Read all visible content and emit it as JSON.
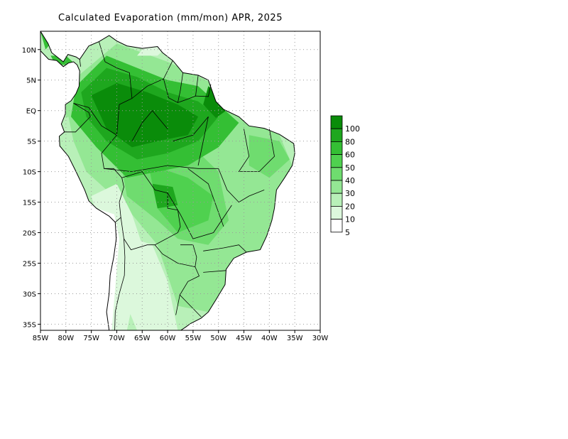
{
  "title": "Calculated Evaporation (mm/mon) APR, 2025",
  "map": {
    "lon_range": [
      -85,
      -30
    ],
    "lat_range": [
      -36,
      13
    ],
    "lon_ticks": [
      {
        "value": -85,
        "label": "85W"
      },
      {
        "value": -80,
        "label": "80W"
      },
      {
        "value": -75,
        "label": "75W"
      },
      {
        "value": -70,
        "label": "70W"
      },
      {
        "value": -65,
        "label": "65W"
      },
      {
        "value": -60,
        "label": "60W"
      },
      {
        "value": -55,
        "label": "55W"
      },
      {
        "value": -50,
        "label": "50W"
      },
      {
        "value": -45,
        "label": "45W"
      },
      {
        "value": -40,
        "label": "40W"
      },
      {
        "value": -35,
        "label": "35W"
      },
      {
        "value": -30,
        "label": "30W"
      }
    ],
    "lat_ticks": [
      {
        "value": 10,
        "label": "10N"
      },
      {
        "value": 5,
        "label": "5N"
      },
      {
        "value": 0,
        "label": "EQ"
      },
      {
        "value": -5,
        "label": "5S"
      },
      {
        "value": -10,
        "label": "10S"
      },
      {
        "value": -15,
        "label": "15S"
      },
      {
        "value": -20,
        "label": "20S"
      },
      {
        "value": -25,
        "label": "25S"
      },
      {
        "value": -30,
        "label": "30S"
      },
      {
        "value": -35,
        "label": "35S"
      }
    ],
    "grid": "dotted"
  },
  "legend": {
    "levels": [
      {
        "label": "100",
        "color": "#0a8c0a"
      },
      {
        "label": "80",
        "color": "#1ea71e"
      },
      {
        "label": "60",
        "color": "#34bf34"
      },
      {
        "label": "50",
        "color": "#4fd14f"
      },
      {
        "label": "40",
        "color": "#6fdc6f"
      },
      {
        "label": "30",
        "color": "#94e794"
      },
      {
        "label": "20",
        "color": "#b8f0b8"
      },
      {
        "label": "10",
        "color": "#dcf8dc"
      },
      {
        "label": "5",
        "color": "#ffffff"
      }
    ]
  },
  "colors": {
    "land_bg": "#b8f0b8",
    "border": "#000000",
    "grid": "#9a9a9a"
  }
}
